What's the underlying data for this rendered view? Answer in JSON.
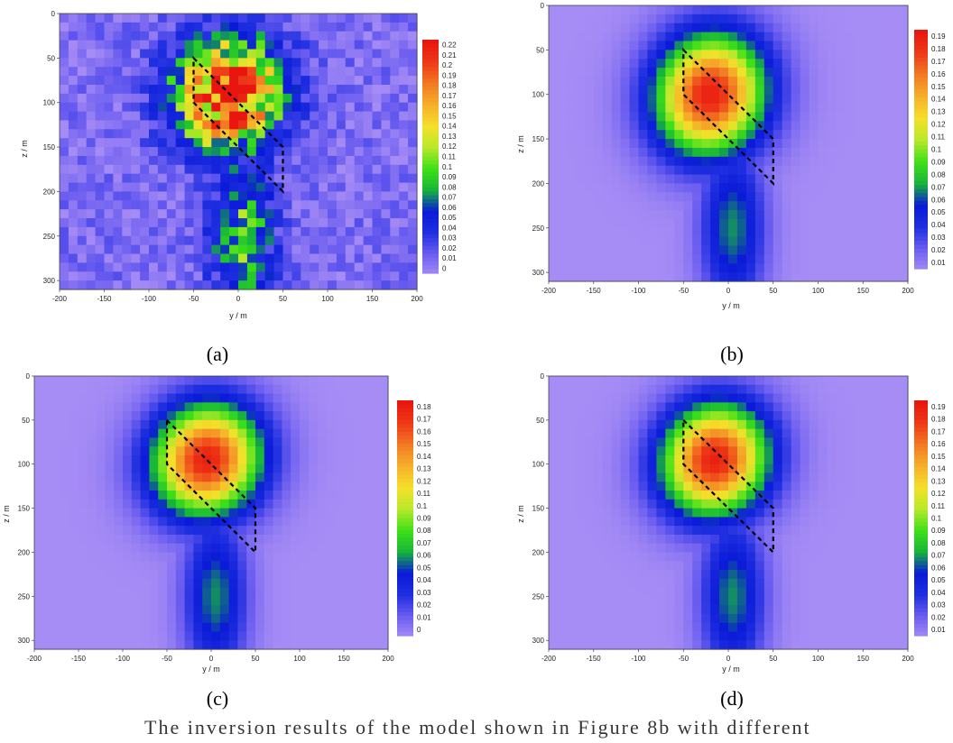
{
  "panels": [
    {
      "label": "a",
      "chart_data": {
        "type": "heatmap",
        "xlabel": "y / m",
        "ylabel": "z / m",
        "xlim": [
          -200,
          200
        ],
        "ylim": [
          310,
          0
        ],
        "x_ticks": [
          "-200",
          "-150",
          "-100",
          "-50",
          "0",
          "50",
          "100",
          "150",
          "200"
        ],
        "y_ticks": [
          "0",
          "50",
          "100",
          "150",
          "200",
          "250",
          "300"
        ],
        "colorbar_ticks": [
          "0.22",
          "0.21",
          "0.2",
          "0.19",
          "0.18",
          "0.17",
          "0.16",
          "0.15",
          "0.14",
          "0.13",
          "0.12",
          "0.11",
          "0.1",
          "0.09",
          "0.08",
          "0.07",
          "0.06",
          "0.05",
          "0.04",
          "0.03",
          "0.02",
          "0.01",
          "0"
        ],
        "colorbar_range": [
          0,
          0.22
        ],
        "annotation": "dashed parallelogram outline of true body",
        "outline": [
          [
            -50,
            50
          ],
          [
            50,
            150
          ],
          [
            50,
            200
          ],
          [
            -50,
            100
          ]
        ],
        "anomaly": {
          "center": [
            -10,
            90
          ],
          "peak": 0.22,
          "spread": [
            55,
            65
          ],
          "pattern": "noisy"
        }
      }
    },
    {
      "label": "b",
      "chart_data": {
        "type": "heatmap",
        "xlabel": "y / m",
        "ylabel": "z / m",
        "xlim": [
          -200,
          200
        ],
        "ylim": [
          310,
          0
        ],
        "x_ticks": [
          "-200",
          "-150",
          "-100",
          "-50",
          "0",
          "50",
          "100",
          "150",
          "200"
        ],
        "y_ticks": [
          "0",
          "50",
          "100",
          "150",
          "200",
          "250",
          "300"
        ],
        "colorbar_ticks": [
          "0.19",
          "0.18",
          "0.17",
          "0.16",
          "0.15",
          "0.14",
          "0.13",
          "0.12",
          "0.11",
          "0.1",
          "0.09",
          "0.08",
          "0.07",
          "0.06",
          "0.05",
          "0.04",
          "0.03",
          "0.02",
          "0.01"
        ],
        "colorbar_range": [
          0,
          0.195
        ],
        "annotation": "dashed parallelogram outline of true body",
        "outline": [
          [
            -50,
            50
          ],
          [
            50,
            150
          ],
          [
            50,
            200
          ],
          [
            -50,
            100
          ]
        ],
        "anomaly": {
          "center": [
            -20,
            100
          ],
          "peak": 0.19,
          "spread": [
            60,
            75
          ],
          "pattern": "smooth"
        }
      }
    },
    {
      "label": "c",
      "chart_data": {
        "type": "heatmap",
        "xlabel": "y / m",
        "ylabel": "z / m",
        "xlim": [
          -200,
          200
        ],
        "ylim": [
          310,
          0
        ],
        "x_ticks": [
          "-200",
          "-150",
          "-100",
          "-50",
          "0",
          "50",
          "100",
          "150",
          "200"
        ],
        "y_ticks": [
          "0",
          "50",
          "100",
          "150",
          "200",
          "250",
          "300"
        ],
        "colorbar_ticks": [
          "0.18",
          "0.17",
          "0.16",
          "0.15",
          "0.14",
          "0.13",
          "0.12",
          "0.11",
          "0.1",
          "0.09",
          "0.08",
          "0.07",
          "0.06",
          "0.05",
          "0.04",
          "0.03",
          "0.02",
          "0.01",
          "0"
        ],
        "colorbar_range": [
          0,
          0.185
        ],
        "annotation": "dashed parallelogram outline of true body",
        "outline": [
          [
            -50,
            50
          ],
          [
            50,
            150
          ],
          [
            50,
            200
          ],
          [
            -50,
            100
          ]
        ],
        "anomaly": {
          "center": [
            -5,
            95
          ],
          "peak": 0.18,
          "spread": [
            60,
            70
          ],
          "pattern": "smooth"
        }
      }
    },
    {
      "label": "d",
      "chart_data": {
        "type": "heatmap",
        "xlabel": "y / m",
        "ylabel": "z / m",
        "xlim": [
          -200,
          200
        ],
        "ylim": [
          310,
          0
        ],
        "x_ticks": [
          "-200",
          "-150",
          "-100",
          "-50",
          "0",
          "50",
          "100",
          "150",
          "200"
        ],
        "y_ticks": [
          "0",
          "50",
          "100",
          "150",
          "200",
          "250",
          "300"
        ],
        "colorbar_ticks": [
          "0.19",
          "0.18",
          "0.17",
          "0.16",
          "0.15",
          "0.14",
          "0.13",
          "0.12",
          "0.11",
          "0.1",
          "0.09",
          "0.08",
          "0.07",
          "0.06",
          "0.05",
          "0.04",
          "0.03",
          "0.02",
          "0.01"
        ],
        "colorbar_range": [
          0,
          0.195
        ],
        "annotation": "dashed parallelogram outline of true body",
        "outline": [
          [
            -50,
            50
          ],
          [
            50,
            150
          ],
          [
            50,
            200
          ],
          [
            -50,
            100
          ]
        ],
        "anomaly": {
          "center": [
            -15,
            95
          ],
          "peak": 0.19,
          "spread": [
            58,
            70
          ],
          "pattern": "smooth"
        }
      }
    }
  ],
  "captions": [
    "(a)",
    "(b)",
    "(c)",
    "(d)"
  ],
  "footer_text": "The inversion results of the model shown in Figure 8b with different",
  "colormap": [
    "#a68cf5",
    "#6a5cf0",
    "#1f2fe0",
    "#0a1ad8",
    "#16b53a",
    "#3ee018",
    "#b8e82a",
    "#f5e02a",
    "#f5b02a",
    "#f37a22",
    "#ee3a18",
    "#e8160e"
  ]
}
